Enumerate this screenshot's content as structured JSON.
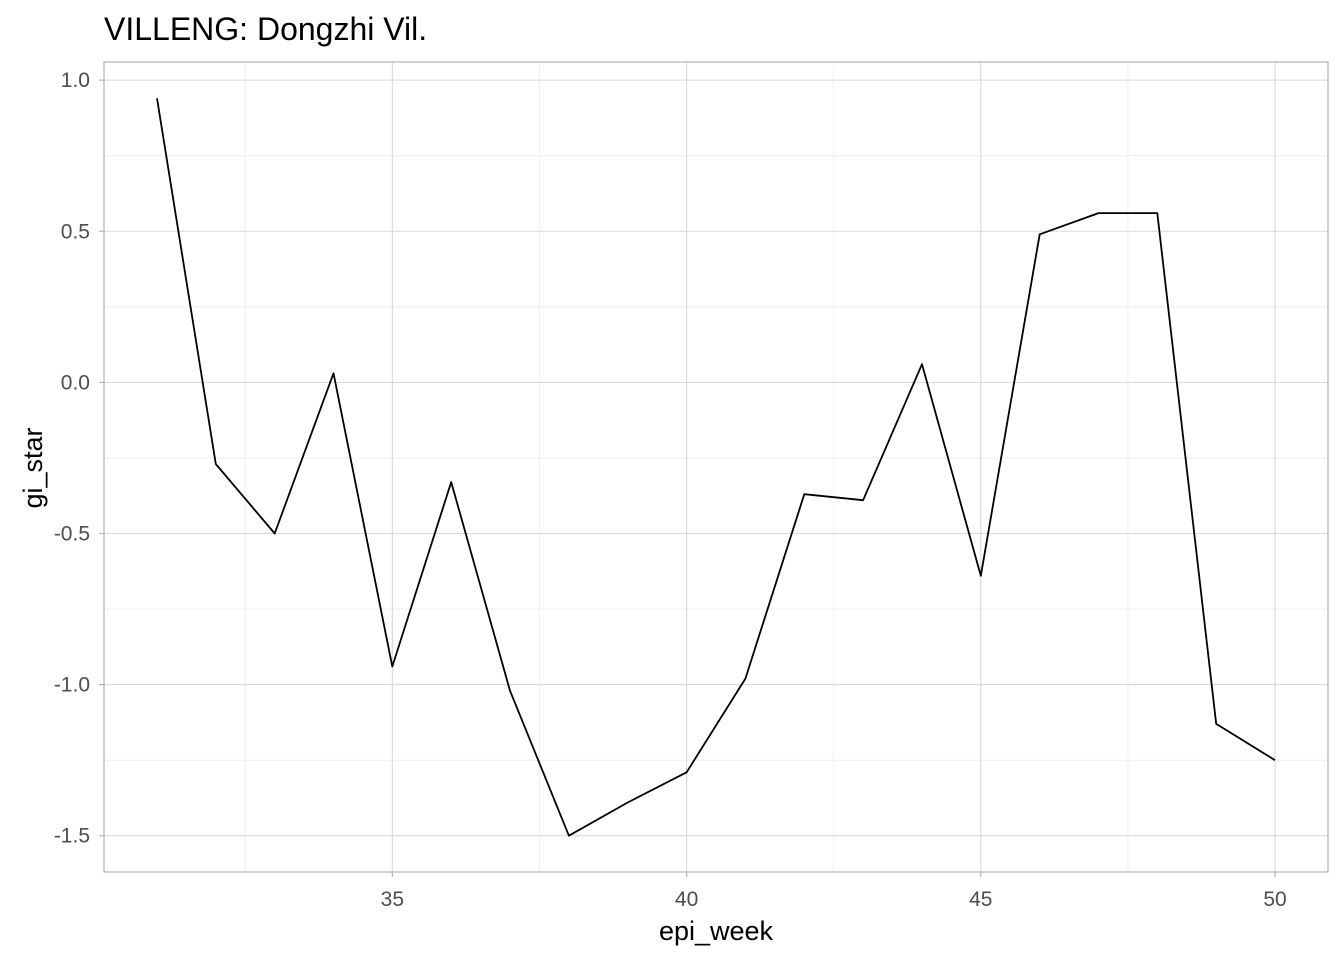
{
  "chart_data": {
    "type": "line",
    "title": "VILLENG: Dongzhi Vil.",
    "xlabel": "epi_week",
    "ylabel": "gi_star",
    "x": [
      31,
      32,
      33,
      34,
      35,
      36,
      37,
      38,
      39,
      40,
      41,
      42,
      43,
      44,
      45,
      46,
      47,
      48,
      49,
      50
    ],
    "series": [
      {
        "values": [
          0.94,
          -0.27,
          -0.5,
          0.03,
          -0.94,
          -0.33,
          -1.02,
          -1.5,
          -1.39,
          -1.29,
          -0.98,
          -0.37,
          -0.39,
          0.06,
          -0.64,
          0.49,
          0.56,
          0.56,
          -1.13,
          -1.25
        ],
        "color": "#000000"
      }
    ],
    "xlim": [
      30.1,
      50.9
    ],
    "ylim": [
      -1.62,
      1.06
    ],
    "xticks": [
      35,
      40,
      45,
      50
    ],
    "xtick_labels": [
      "35",
      "40",
      "45",
      "50"
    ],
    "yticks": [
      1.0,
      0.5,
      0.0,
      -0.5,
      -1.0,
      -1.5
    ],
    "ytick_labels": [
      "1.0",
      "0.5",
      "0.0",
      "-0.5",
      "-1.0",
      "-1.5"
    ],
    "grid": true,
    "legend": "none"
  }
}
